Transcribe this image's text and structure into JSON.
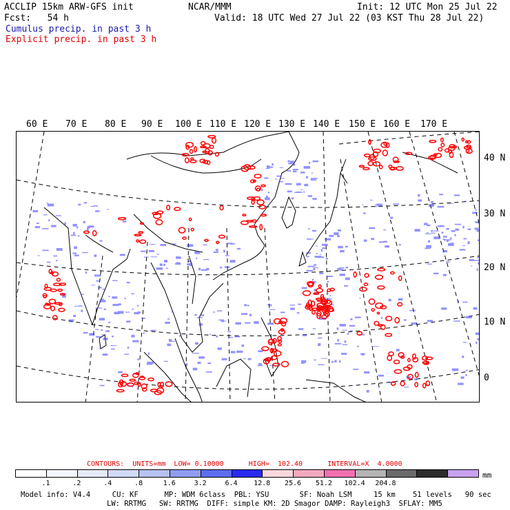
{
  "header": {
    "line1_left": "ACCLIP 15km ARW-GFS init",
    "line1_center": "NCAR/MMM",
    "line1_right": "Init: 12 UTC Mon 25 Jul 22",
    "line2_left": "Fcst:   54 h",
    "line2_right": "Valid: 18 UTC Wed 27 Jul 22 (03 KST Thu 28 Jul 22)",
    "cumulus_label": "Cumulus precip. in past 3 h",
    "explicit_label": "Explicit precip. in past 3 h"
  },
  "map": {
    "longitude_labels": [
      "60 E",
      "70 E",
      "80 E",
      "90 E",
      "100 E",
      "110 E",
      "120 E",
      "130 E",
      "140 E",
      "150 E",
      "160 E",
      "170 E"
    ],
    "latitude_labels": [
      "40 N",
      "30 N",
      "20 N",
      "10 N",
      "0"
    ],
    "colors": {
      "cumulus": "#3333ff",
      "explicit": "#ff0000",
      "coast": "#000000",
      "grid": "#000000"
    }
  },
  "contours": {
    "label": "CONTOURS:  UNITS=mm  LOW= 0.10000      HIGH=  102.40      INTERVAL=X  4.0000"
  },
  "colorbar": {
    "colors": [
      "#ffffff",
      "#f4f6fd",
      "#e6eafb",
      "#d2daf7",
      "#b8c2f2",
      "#8f9cf0",
      "#5e6cf0",
      "#2a2af0",
      "#f8d8dc",
      "#f4a8c0",
      "#f070b0",
      "#b4b4b4",
      "#6a6a6a",
      "#2c2c2c",
      "#c8a0f0"
    ],
    "labels": [
      ".1",
      ".2",
      ".4",
      ".8",
      "1.6",
      "3.2",
      "6.4",
      "12.8",
      "25.6",
      "51.2",
      "102.4",
      "204.8"
    ],
    "units": "mm"
  },
  "footer": {
    "line1": "Model info: V4.4     CU: KF      MP: WDM 6class  PBL: YSU       SF: Noah LSM     15 km    51 levels   90 sec",
    "line2": "LW: RRTMG   SW: RRTMG  DIFF: simple KM: 2D Smagor DAMP: Rayleigh3  SFLAY: MM5"
  }
}
